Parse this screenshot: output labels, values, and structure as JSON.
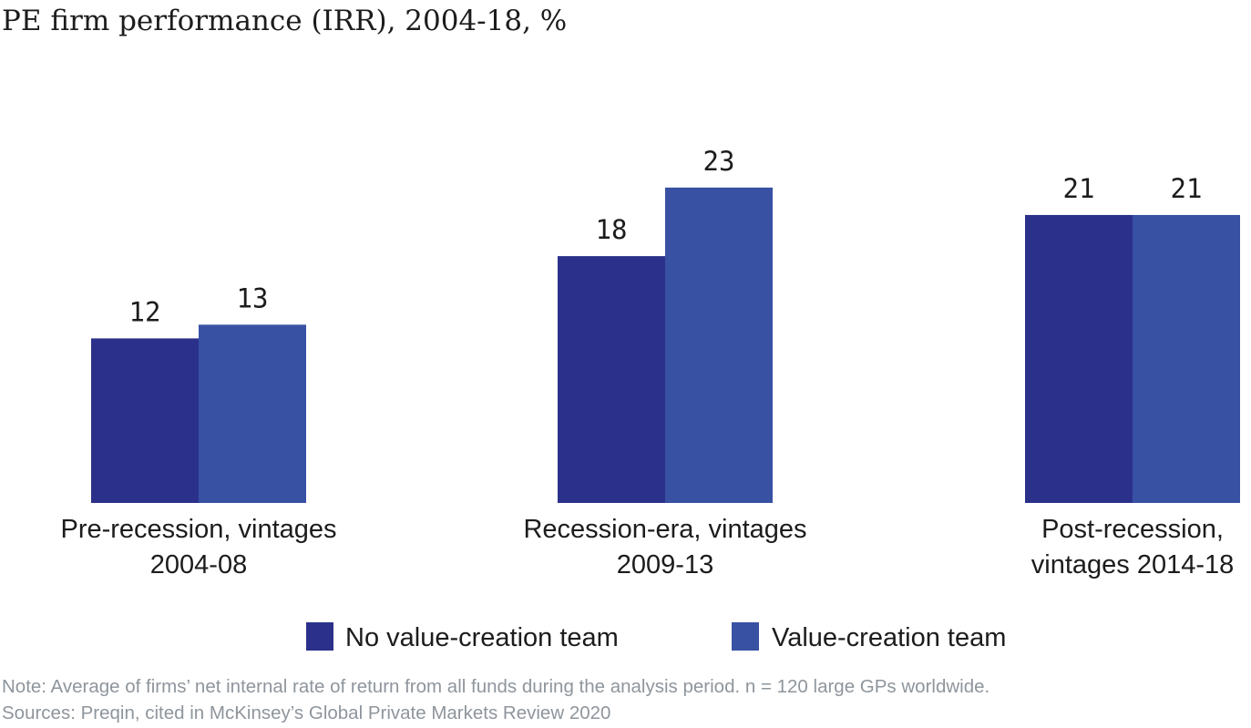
{
  "chart_data": {
    "type": "bar",
    "title": "PE firm performance (IRR), 2004-18, %",
    "categories": [
      [
        "Pre-recession, vintages",
        "2004-08"
      ],
      [
        "Recession-era, vintages",
        "2009-13"
      ],
      [
        "Post-recession,",
        "vintages 2014-18"
      ]
    ],
    "series": [
      {
        "name": "No value-creation team",
        "color": "#2b318a",
        "values": [
          12,
          18,
          21
        ]
      },
      {
        "name": "Value-creation team",
        "color": "#3851a3",
        "values": [
          13,
          23,
          21
        ]
      }
    ],
    "ylim": [
      0,
      25
    ],
    "grid": false,
    "legend_position": "bottom-center",
    "notes": [
      "Note:  Average of firms’ net internal rate of return from all funds during the analysis period. n = 120 large GPs worldwide.",
      "Sources: Preqin, cited in McKinsey’s Global Private Markets Review 2020"
    ]
  }
}
